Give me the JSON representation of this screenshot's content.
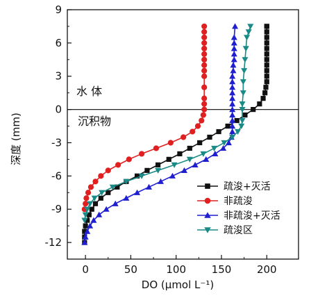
{
  "chart_data": {
    "type": "line",
    "xlabel": "DO (μmol L⁻¹)",
    "ylabel": "深度 (mm)",
    "xlim": [
      -20,
      235
    ],
    "ylim": [
      -13.5,
      9
    ],
    "xticks": [
      0,
      50,
      100,
      150,
      200
    ],
    "yticks": [
      9,
      6,
      3,
      0,
      -3,
      -6,
      -9,
      -12
    ],
    "reference_line_y": 0,
    "annotations": [
      "水  体",
      "沉积物"
    ],
    "legend_position": "bottom-right",
    "series": [
      {
        "name": "疏浚+灭活",
        "color": "#111111",
        "marker": "square",
        "x": [
          -1,
          -1,
          -1,
          0,
          2,
          4,
          7,
          11,
          17,
          25,
          35,
          45,
          57,
          68,
          80,
          92,
          104,
          115,
          126,
          137,
          147,
          157,
          167,
          176,
          185,
          192,
          196,
          198,
          199,
          200,
          200,
          200,
          200,
          200,
          200,
          200,
          200,
          200,
          200,
          200,
          200
        ],
        "y": [
          -12,
          -11.5,
          -11,
          -10.5,
          -10,
          -9.5,
          -9,
          -8.5,
          -8,
          -7.5,
          -7,
          -6.5,
          -6,
          -5.5,
          -5,
          -4.5,
          -4,
          -3.5,
          -3,
          -2.5,
          -2,
          -1.5,
          -1,
          -0.5,
          0,
          0.5,
          1,
          1.5,
          2,
          2.5,
          3,
          3.5,
          4,
          4.5,
          5,
          5.5,
          6,
          6.5,
          7,
          7.5,
          7.5
        ]
      },
      {
        "name": "非疏浚",
        "color": "#e02020",
        "marker": "circle",
        "x": [
          -1,
          0,
          1,
          3,
          6,
          11,
          17,
          25,
          36,
          48,
          62,
          78,
          94,
          108,
          118,
          124,
          128,
          130,
          131,
          131,
          131,
          131,
          131,
          131,
          131,
          131,
          131,
          131,
          131,
          131,
          131,
          131
        ],
        "y": [
          -9,
          -8.5,
          -8,
          -7.5,
          -7,
          -6.5,
          -6,
          -5.5,
          -5,
          -4.5,
          -4,
          -3.5,
          -3,
          -2.5,
          -2,
          -1.5,
          -1,
          -0.5,
          0,
          0.5,
          1,
          2,
          3,
          3.5,
          4,
          4.5,
          5,
          5.5,
          6,
          6.5,
          7,
          7.5
        ]
      },
      {
        "name": "非疏浚+灭活",
        "color": "#1f1fd0",
        "marker": "triangle-up",
        "x": [
          -1,
          0,
          2,
          5,
          9,
          15,
          23,
          33,
          45,
          57,
          70,
          83,
          96,
          109,
          121,
          133,
          143,
          152,
          158,
          161,
          162,
          162,
          162,
          162,
          162,
          162,
          162,
          162,
          162,
          162,
          162,
          163,
          163,
          164,
          164,
          164,
          164,
          164,
          165
        ],
        "y": [
          -12,
          -11.5,
          -11,
          -10.5,
          -10,
          -9.5,
          -9,
          -8.5,
          -8,
          -7.5,
          -7,
          -6.5,
          -6,
          -5.5,
          -5,
          -4.5,
          -4,
          -3.5,
          -3,
          -2.5,
          -2,
          -1.5,
          -1,
          -0.5,
          0,
          0.5,
          1,
          1.5,
          2,
          2.5,
          3,
          3.5,
          4,
          4.5,
          5,
          5.5,
          6,
          6.5,
          7.5
        ]
      },
      {
        "name": "疏浚区",
        "color": "#1a8a86",
        "marker": "triangle-down",
        "x": [
          -1,
          0,
          2,
          5,
          10,
          18,
          30,
          45,
          62,
          80,
          98,
          115,
          130,
          142,
          153,
          162,
          168,
          172,
          173,
          173,
          173,
          174,
          174,
          175,
          176,
          177,
          178,
          180,
          182
        ],
        "y": [
          -10,
          -9.5,
          -9,
          -8.5,
          -8,
          -7.5,
          -7,
          -6.5,
          -6,
          -5.5,
          -5,
          -4.5,
          -4,
          -3.5,
          -3,
          -2.5,
          -2,
          -1.5,
          -1,
          0,
          0.5,
          1.5,
          2.5,
          3.5,
          4.5,
          5.5,
          6.5,
          7,
          7.5
        ]
      }
    ]
  }
}
